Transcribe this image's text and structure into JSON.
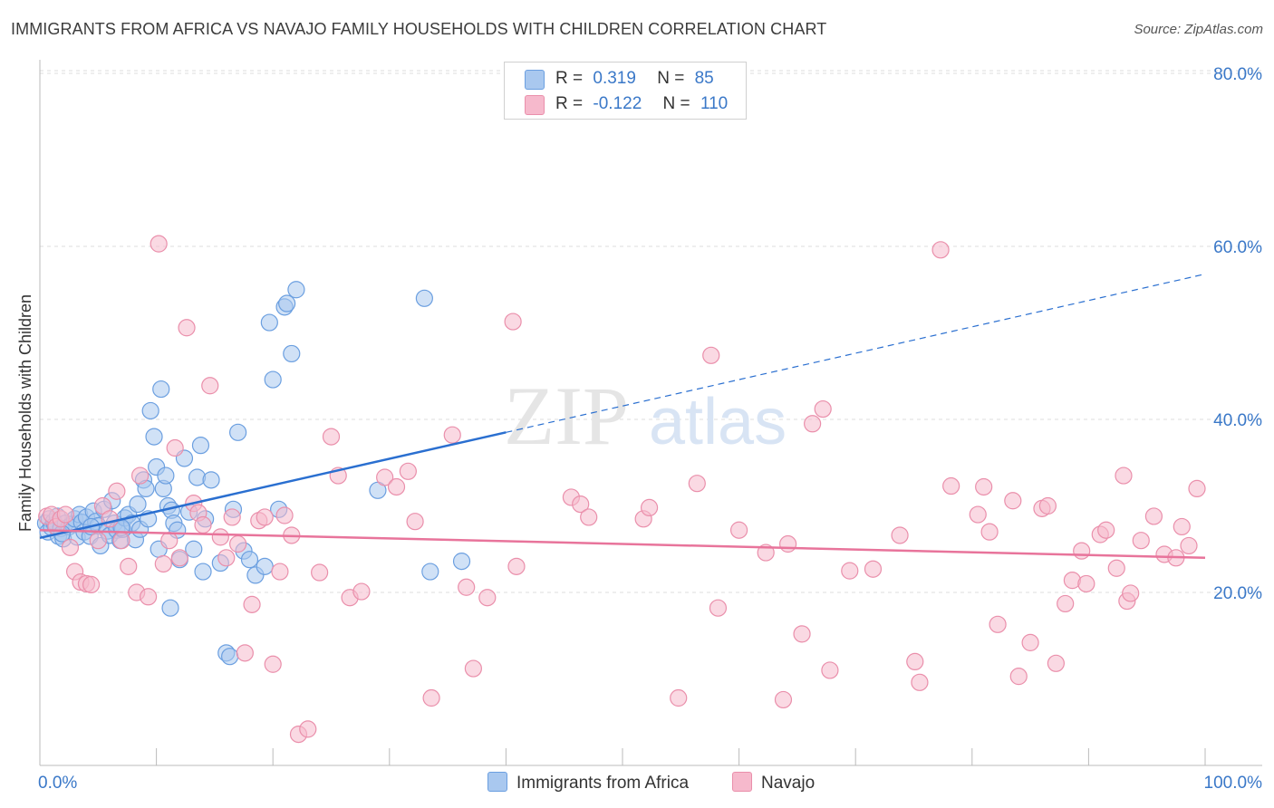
{
  "title": "IMMIGRANTS FROM AFRICA VS NAVAJO FAMILY HOUSEHOLDS WITH CHILDREN CORRELATION CHART",
  "source": "Source: ZipAtlas.com",
  "watermark": {
    "zip": "ZIP",
    "atlas": "atlas"
  },
  "colors": {
    "blue_fill": "#a9c8ef",
    "blue_stroke": "#6b9fe0",
    "blue_line": "#2a6fd0",
    "pink_fill": "#f6b9cc",
    "pink_stroke": "#ea8fab",
    "pink_line": "#e8749b",
    "grid": "#dddddd",
    "axis_label": "#3a78c8"
  },
  "legend": {
    "rows": [
      {
        "r_label": "R =",
        "r_value": "0.319",
        "n_label": "N =",
        "n_value": "85"
      },
      {
        "r_label": "R =",
        "r_value": "-0.122",
        "n_label": "N =",
        "n_value": "110"
      }
    ]
  },
  "bottom_legend": {
    "series1": "Immigrants from Africa",
    "series2": "Navajo"
  },
  "chart_data": {
    "type": "scatter",
    "title": "IMMIGRANTS FROM AFRICA VS NAVAJO FAMILY HOUSEHOLDS WITH CHILDREN CORRELATION CHART",
    "xlabel": "",
    "ylabel": "Family Households with Children",
    "xlim": [
      0,
      100
    ],
    "ylim": [
      0,
      85
    ],
    "x_tick_labels": [
      "0.0%",
      "100.0%"
    ],
    "y_ticks": [
      20,
      40,
      60,
      80
    ],
    "y_tick_labels": [
      "20.0%",
      "40.0%",
      "60.0%",
      "80.0%"
    ],
    "grid": true,
    "legend_position": "top-center",
    "series": [
      {
        "name": "Immigrants from Africa",
        "R": 0.319,
        "N": 85,
        "trend": {
          "x0": 0,
          "y0": 26.3,
          "x1": 40,
          "y1": 38.5,
          "dash_to_x": 100,
          "dash_to_y": 56.8
        },
        "points": [
          [
            0.5,
            28.0
          ],
          [
            0.7,
            27.0
          ],
          [
            0.8,
            28.5
          ],
          [
            1.0,
            27.5
          ],
          [
            1.2,
            28.2
          ],
          [
            1.3,
            27.8
          ],
          [
            1.5,
            28.8
          ],
          [
            1.6,
            26.5
          ],
          [
            1.8,
            27.4
          ],
          [
            2.0,
            26.2
          ],
          [
            2.2,
            28.0
          ],
          [
            2.5,
            27.6
          ],
          [
            2.8,
            27.9
          ],
          [
            3.0,
            28.5
          ],
          [
            3.2,
            26.4
          ],
          [
            3.4,
            29.0
          ],
          [
            3.6,
            28.1
          ],
          [
            3.8,
            27.0
          ],
          [
            4.0,
            28.7
          ],
          [
            4.3,
            26.5
          ],
          [
            4.6,
            29.4
          ],
          [
            4.8,
            28.2
          ],
          [
            5.0,
            27.7
          ],
          [
            5.2,
            25.4
          ],
          [
            5.5,
            29.6
          ],
          [
            5.8,
            27.1
          ],
          [
            6.0,
            26.6
          ],
          [
            6.2,
            30.6
          ],
          [
            6.4,
            28.0
          ],
          [
            6.6,
            27.2
          ],
          [
            6.9,
            26.0
          ],
          [
            7.1,
            27.3
          ],
          [
            7.3,
            28.6
          ],
          [
            7.6,
            29.0
          ],
          [
            7.9,
            28.0
          ],
          [
            8.2,
            26.1
          ],
          [
            8.4,
            30.2
          ],
          [
            8.6,
            27.3
          ],
          [
            8.9,
            33.0
          ],
          [
            9.1,
            32.0
          ],
          [
            9.3,
            28.5
          ],
          [
            9.5,
            41.0
          ],
          [
            9.8,
            38.0
          ],
          [
            10.0,
            34.5
          ],
          [
            10.2,
            25.0
          ],
          [
            10.4,
            43.5
          ],
          [
            10.6,
            32.0
          ],
          [
            10.8,
            33.5
          ],
          [
            11.0,
            30.0
          ],
          [
            11.3,
            29.5
          ],
          [
            11.5,
            28.0
          ],
          [
            11.8,
            27.2
          ],
          [
            12.0,
            23.8
          ],
          [
            12.4,
            35.5
          ],
          [
            12.8,
            29.3
          ],
          [
            13.2,
            25.0
          ],
          [
            13.5,
            33.3
          ],
          [
            13.8,
            37.0
          ],
          [
            14.0,
            22.4
          ],
          [
            14.2,
            28.5
          ],
          [
            14.7,
            33.0
          ],
          [
            15.5,
            23.4
          ],
          [
            16.0,
            13.0
          ],
          [
            16.3,
            12.6
          ],
          [
            16.6,
            29.6
          ],
          [
            17.0,
            38.5
          ],
          [
            17.5,
            24.8
          ],
          [
            18.0,
            23.8
          ],
          [
            18.5,
            22.0
          ],
          [
            19.3,
            23.0
          ],
          [
            19.7,
            51.2
          ],
          [
            20.0,
            44.6
          ],
          [
            20.5,
            29.6
          ],
          [
            21.0,
            53.0
          ],
          [
            21.2,
            53.4
          ],
          [
            21.6,
            47.6
          ],
          [
            22.0,
            55.0
          ],
          [
            29.0,
            31.8
          ],
          [
            33.0,
            54.0
          ],
          [
            33.5,
            22.4
          ],
          [
            36.2,
            23.6
          ],
          [
            11.2,
            18.2
          ],
          [
            7.0,
            27.5
          ],
          [
            4.4,
            27.6
          ],
          [
            1.9,
            26.8
          ]
        ]
      },
      {
        "name": "Navajo",
        "R": -0.122,
        "N": 110,
        "trend": {
          "x0": 0,
          "y0": 27.2,
          "x1": 100,
          "y1": 24.0
        },
        "points": [
          [
            0.6,
            28.8
          ],
          [
            1.0,
            29.0
          ],
          [
            1.4,
            27.6
          ],
          [
            1.8,
            28.5
          ],
          [
            2.2,
            29.0
          ],
          [
            2.6,
            25.2
          ],
          [
            3.0,
            22.4
          ],
          [
            3.5,
            21.2
          ],
          [
            4.0,
            21.0
          ],
          [
            4.4,
            20.9
          ],
          [
            5.0,
            26.0
          ],
          [
            5.4,
            30.0
          ],
          [
            6.0,
            28.5
          ],
          [
            6.6,
            31.7
          ],
          [
            7.0,
            26.0
          ],
          [
            7.6,
            23.0
          ],
          [
            8.3,
            20.0
          ],
          [
            8.6,
            33.5
          ],
          [
            9.3,
            19.5
          ],
          [
            10.2,
            60.3
          ],
          [
            10.6,
            23.3
          ],
          [
            11.1,
            26.0
          ],
          [
            11.6,
            36.7
          ],
          [
            12.0,
            24.0
          ],
          [
            12.6,
            50.6
          ],
          [
            13.2,
            30.3
          ],
          [
            13.6,
            29.2
          ],
          [
            14.0,
            27.8
          ],
          [
            14.6,
            43.9
          ],
          [
            15.5,
            26.4
          ],
          [
            16.0,
            24.0
          ],
          [
            16.5,
            28.7
          ],
          [
            17.0,
            25.6
          ],
          [
            17.6,
            13.0
          ],
          [
            18.2,
            18.6
          ],
          [
            18.8,
            28.3
          ],
          [
            19.3,
            28.7
          ],
          [
            20.0,
            11.7
          ],
          [
            20.6,
            22.4
          ],
          [
            21.0,
            28.9
          ],
          [
            21.6,
            26.6
          ],
          [
            22.2,
            3.6
          ],
          [
            23.0,
            4.2
          ],
          [
            24.0,
            22.3
          ],
          [
            25.0,
            38.0
          ],
          [
            25.6,
            33.5
          ],
          [
            26.6,
            19.4
          ],
          [
            27.6,
            20.1
          ],
          [
            29.6,
            33.3
          ],
          [
            30.6,
            32.2
          ],
          [
            31.6,
            34.0
          ],
          [
            32.2,
            28.2
          ],
          [
            33.6,
            7.8
          ],
          [
            35.4,
            38.2
          ],
          [
            36.6,
            20.6
          ],
          [
            37.2,
            11.2
          ],
          [
            38.4,
            19.4
          ],
          [
            40.6,
            51.3
          ],
          [
            40.9,
            23.0
          ],
          [
            45.6,
            31.0
          ],
          [
            46.4,
            30.2
          ],
          [
            47.1,
            28.7
          ],
          [
            51.8,
            28.5
          ],
          [
            52.3,
            29.8
          ],
          [
            54.8,
            7.8
          ],
          [
            56.4,
            32.6
          ],
          [
            57.6,
            47.4
          ],
          [
            58.2,
            18.2
          ],
          [
            60.0,
            27.2
          ],
          [
            62.3,
            24.6
          ],
          [
            63.8,
            7.6
          ],
          [
            64.2,
            25.6
          ],
          [
            65.4,
            15.2
          ],
          [
            66.3,
            39.5
          ],
          [
            67.2,
            41.2
          ],
          [
            67.8,
            11.0
          ],
          [
            69.5,
            22.5
          ],
          [
            71.5,
            22.7
          ],
          [
            73.8,
            26.6
          ],
          [
            75.1,
            12.0
          ],
          [
            75.5,
            9.6
          ],
          [
            77.3,
            59.6
          ],
          [
            78.2,
            32.3
          ],
          [
            80.5,
            29.0
          ],
          [
            81.0,
            32.2
          ],
          [
            81.5,
            27.0
          ],
          [
            82.2,
            16.3
          ],
          [
            83.5,
            30.6
          ],
          [
            84.0,
            10.3
          ],
          [
            85.0,
            14.2
          ],
          [
            86.0,
            29.7
          ],
          [
            86.5,
            30.0
          ],
          [
            87.2,
            11.8
          ],
          [
            88.0,
            18.7
          ],
          [
            88.6,
            21.4
          ],
          [
            89.4,
            24.8
          ],
          [
            89.8,
            21.0
          ],
          [
            91.0,
            26.7
          ],
          [
            91.5,
            27.2
          ],
          [
            92.4,
            22.8
          ],
          [
            93.0,
            33.5
          ],
          [
            93.3,
            19.0
          ],
          [
            93.6,
            19.9
          ],
          [
            94.5,
            26.0
          ],
          [
            95.6,
            28.8
          ],
          [
            96.5,
            24.4
          ],
          [
            97.5,
            24.0
          ],
          [
            98.0,
            27.6
          ],
          [
            98.6,
            25.4
          ],
          [
            99.3,
            32.0
          ]
        ]
      }
    ]
  }
}
